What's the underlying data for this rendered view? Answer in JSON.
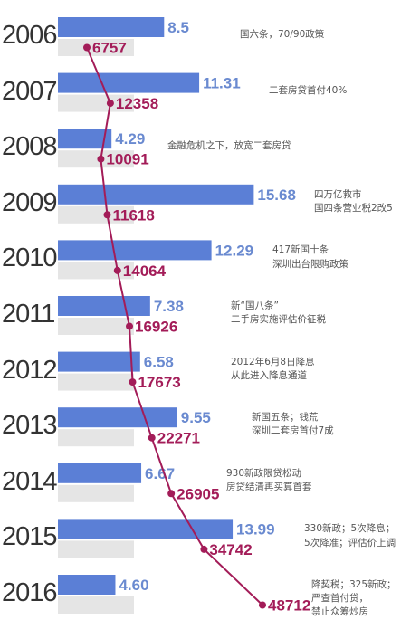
{
  "chart_data": {
    "type": "bar",
    "categories": [
      "2006",
      "2007",
      "2008",
      "2009",
      "2010",
      "2011",
      "2012",
      "2013",
      "2014",
      "2015",
      "2016"
    ],
    "series": [
      {
        "values": [
          8.5,
          11.31,
          4.29,
          15.68,
          12.29,
          7.38,
          6.58,
          9.55,
          6.67,
          13.99,
          4.6
        ],
        "labels": [
          "8.5",
          "11.31",
          "4.29",
          "15.68",
          "12.29",
          "7.38",
          "6.58",
          "9.55",
          "6.67",
          "13.99",
          "4.60"
        ],
        "color": "#5b7fd6"
      },
      {
        "values": [
          6757,
          12358,
          10091,
          11618,
          14064,
          16926,
          17673,
          22271,
          26905,
          34742,
          48712
        ],
        "labels": [
          "6757",
          "12358",
          "10091",
          "11618",
          "14064",
          "16926",
          "17673",
          "22271",
          "26905",
          "34742",
          "48712"
        ],
        "color": "#a31c58",
        "line_type": "line"
      }
    ],
    "annotations": [
      [
        "国六条，70/90政策"
      ],
      [
        "二套房贷首付40%"
      ],
      [
        "金融危机之下，放宽二套房贷"
      ],
      [
        "四万亿救市",
        "国四条营业税2改5"
      ],
      [
        "417新国十条",
        "深圳出台限购政策"
      ],
      [
        "新“国八条”",
        "二手房实施评估价征税"
      ],
      [
        "2012年6月8日降息",
        "从此进入降息通道"
      ],
      [
        "新国五条；钱荒",
        "深圳二套房首付7成"
      ],
      [
        "930新政限贷松动",
        "房贷结清再买算首套"
      ],
      [
        "330新政；5次降息；",
        "5次降准；评估价上调"
      ],
      [
        "降契税；325新政；",
        "严查首付贷，",
        "禁止众筹炒房"
      ]
    ],
    "grid": false,
    "legend": "none"
  },
  "colors": {
    "blue_bar": "#5b7fd6",
    "blue_label": "#6a8ad0",
    "gray_bar": "#e5e5e5",
    "line": "#a31c58",
    "year_text": "#333333",
    "note_text": "#555555"
  }
}
